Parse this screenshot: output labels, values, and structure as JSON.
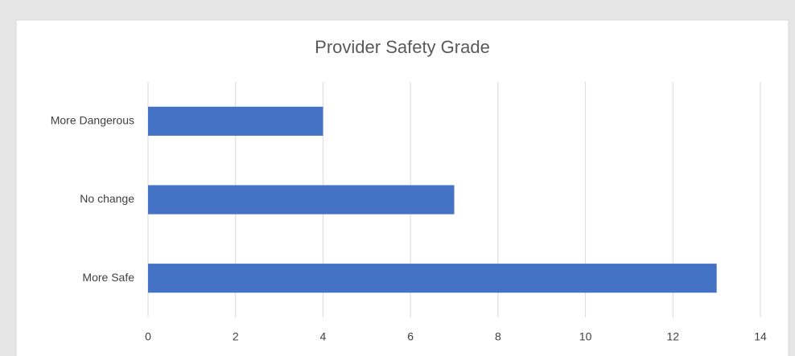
{
  "chart_data": {
    "type": "bar",
    "orientation": "horizontal",
    "title": "Provider Safety Grade",
    "categories": [
      "More Dangerous",
      "No change",
      "More Safe"
    ],
    "values": [
      4,
      7,
      13
    ],
    "color": "#4472c4",
    "xlim": [
      0,
      14
    ],
    "xticks": [
      0,
      2,
      4,
      6,
      8,
      10,
      12,
      14
    ],
    "grid": true
  }
}
